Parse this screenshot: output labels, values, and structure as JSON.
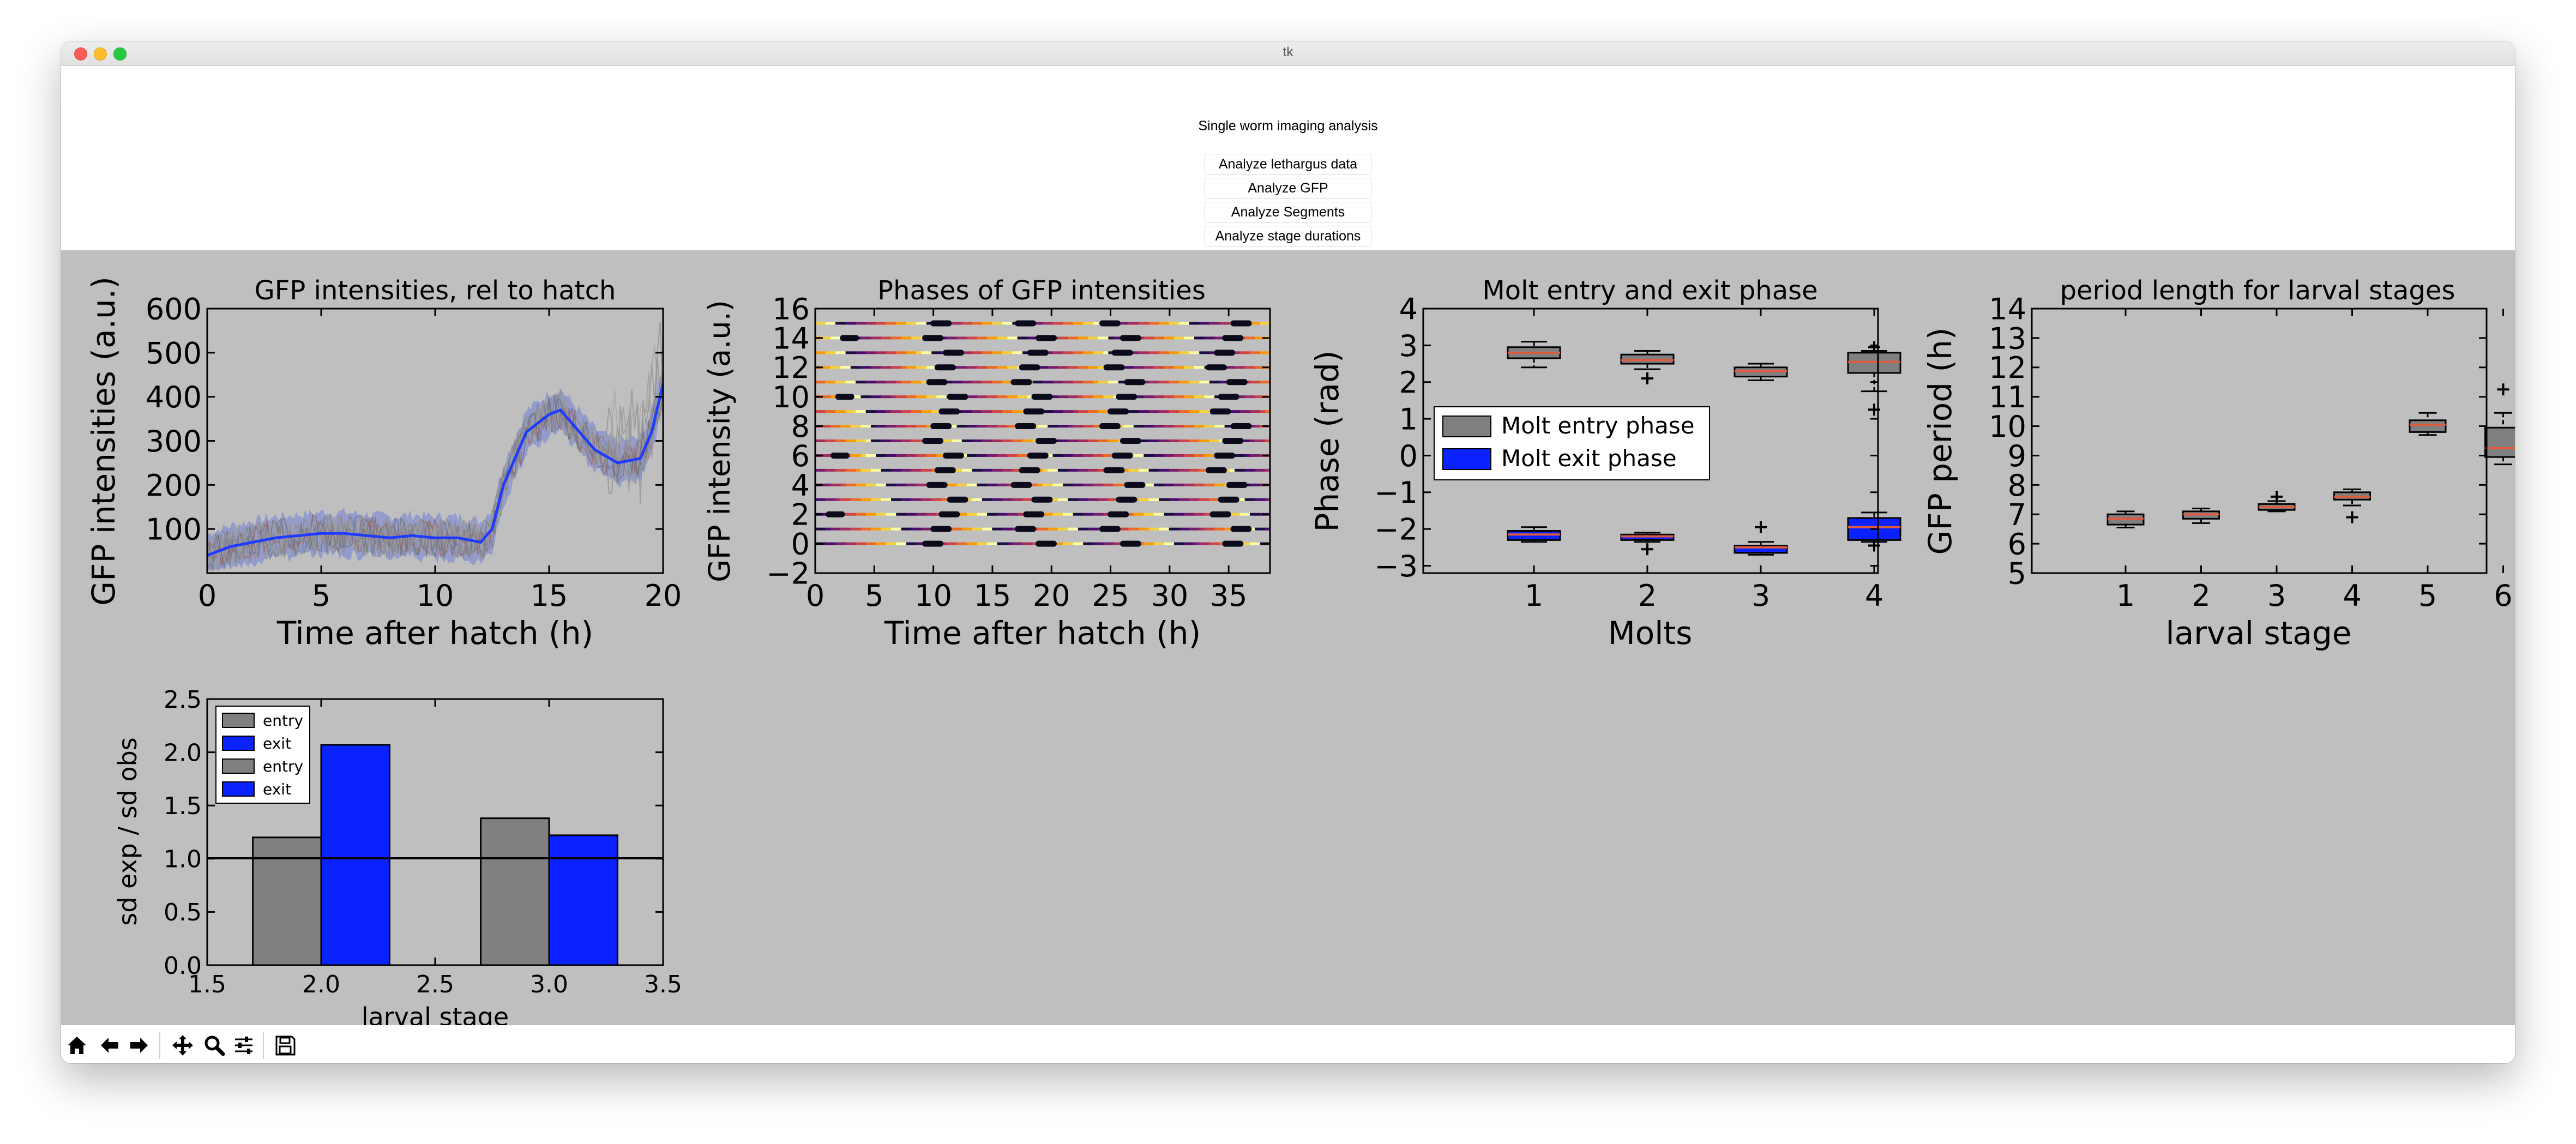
{
  "window": {
    "title": "tk"
  },
  "controls": {
    "title": "Single worm imaging analysis",
    "buttons": [
      "Analyze lethargus data",
      "Analyze GFP",
      "Analyze Segments",
      "Analyze stage durations"
    ]
  },
  "toolbar": {
    "icons": [
      "home-icon",
      "back-icon",
      "forward-icon",
      "pan-icon",
      "zoom-icon",
      "configure-subplots-icon",
      "save-icon"
    ]
  },
  "plots": {
    "p1": {
      "title": "GFP intensities, rel to hatch",
      "xlabel": "Time after hatch (h)",
      "ylabel": "GFP intensities (a.u.)",
      "xticks": [
        "0",
        "5",
        "10",
        "15",
        "20"
      ],
      "yticks": [
        "100",
        "200",
        "300",
        "400",
        "500",
        "600"
      ]
    },
    "p2": {
      "title": "Phases of GFP intensities",
      "xlabel": "Time after hatch (h)",
      "ylabel": "GFP intensity (a.u.)",
      "xticks": [
        "0",
        "5",
        "10",
        "15",
        "20",
        "25",
        "30",
        "35"
      ],
      "yticks": [
        "−2",
        "0",
        "2",
        "4",
        "6",
        "8",
        "10",
        "12",
        "14",
        "16"
      ]
    },
    "p3": {
      "title": "Molt entry and exit phase",
      "xlabel": "Molts",
      "ylabel": "Phase (rad)",
      "xticks": [
        "1",
        "2",
        "3",
        "4"
      ],
      "yticks": [
        "−3",
        "−2",
        "−1",
        "0",
        "1",
        "2",
        "3",
        "4"
      ],
      "legend": [
        "Molt entry phase",
        "Molt exit phase"
      ]
    },
    "p4": {
      "title": "period length for larval stages",
      "xlabel": "larval stage",
      "ylabel": "GFP period (h)",
      "xticks": [
        "1",
        "2",
        "3",
        "4",
        "5",
        "6"
      ],
      "yticks": [
        "5",
        "6",
        "7",
        "8",
        "9",
        "10",
        "11",
        "12",
        "13",
        "14"
      ]
    },
    "p5": {
      "xlabel": "larval stage",
      "ylabel": "sd exp / sd obs",
      "xticks": [
        "1.5",
        "2.0",
        "2.5",
        "3.0",
        "3.5"
      ],
      "yticks": [
        "0.0",
        "0.5",
        "1.0",
        "1.5",
        "2.0",
        "2.5"
      ],
      "legend": [
        "entry",
        "exit",
        "entry",
        "exit"
      ]
    }
  },
  "colors": {
    "entry": "#808080",
    "exit": "#0a22ff",
    "median": "#e05a40",
    "figure_bg": "#bfbfbf"
  },
  "chart_data": [
    {
      "type": "line",
      "title": "GFP intensities, rel to hatch",
      "xlabel": "Time after hatch (h)",
      "ylabel": "GFP intensities (a.u.)",
      "xlim": [
        0,
        20
      ],
      "ylim": [
        0,
        600
      ],
      "series": [
        {
          "x": [
            0,
            1,
            2,
            3,
            4,
            5,
            6,
            7,
            8,
            9,
            10,
            11,
            12,
            12.5,
            13,
            14,
            15,
            15.5,
            16,
            17,
            18,
            19,
            19.5,
            20
          ],
          "values": [
            40,
            60,
            70,
            80,
            85,
            90,
            90,
            85,
            80,
            85,
            80,
            80,
            70,
            100,
            200,
            320,
            360,
            370,
            340,
            280,
            250,
            260,
            320,
            430
          ]
        }
      ]
    },
    {
      "type": "scatter",
      "title": "Phases of GFP intensities",
      "xlabel": "Time after hatch (h)",
      "ylabel": "GFP intensity (a.u.)",
      "xlim": [
        0,
        38.5
      ],
      "ylim": [
        -2,
        16
      ],
      "rows": [
        0,
        1,
        2,
        3,
        4,
        5,
        6,
        7,
        8,
        9,
        10,
        11,
        12,
        13,
        14,
        15
      ],
      "molt_times_h": [
        11,
        18.5,
        26,
        35
      ]
    },
    {
      "type": "box",
      "title": "Molt entry and exit phase",
      "xlabel": "Molts",
      "ylabel": "Phase (rad)",
      "ylim": [
        -3.2,
        4
      ],
      "categories": [
        "1",
        "2",
        "3",
        "4"
      ],
      "series": [
        {
          "name": "Molt entry phase",
          "boxes": [
            {
              "q1": 2.65,
              "median": 2.8,
              "q3": 2.95,
              "lo": 2.4,
              "hi": 3.1,
              "outliers": []
            },
            {
              "q1": 2.5,
              "median": 2.6,
              "q3": 2.75,
              "lo": 2.35,
              "hi": 2.85,
              "outliers": [
                2.1
              ]
            },
            {
              "q1": 2.15,
              "median": 2.3,
              "q3": 2.4,
              "lo": 2.05,
              "hi": 2.5,
              "outliers": []
            },
            {
              "q1": 2.25,
              "median": 2.55,
              "q3": 2.8,
              "lo": 1.75,
              "hi": 2.85,
              "outliers": [
                2.95,
                1.25
              ]
            }
          ]
        },
        {
          "name": "Molt exit phase",
          "boxes": [
            {
              "q1": -2.3,
              "median": -2.15,
              "q3": -2.05,
              "lo": -2.35,
              "hi": -1.95,
              "outliers": []
            },
            {
              "q1": -2.3,
              "median": -2.2,
              "q3": -2.15,
              "lo": -2.35,
              "hi": -2.1,
              "outliers": [
                -2.55
              ]
            },
            {
              "q1": -2.65,
              "median": -2.5,
              "q3": -2.45,
              "lo": -2.7,
              "hi": -2.35,
              "outliers": [
                -1.95
              ]
            },
            {
              "q1": -2.3,
              "median": -1.95,
              "q3": -1.7,
              "lo": -2.35,
              "hi": -1.55,
              "outliers": [
                -2.45
              ]
            }
          ]
        }
      ],
      "legend_position": "center-left"
    },
    {
      "type": "box",
      "title": "period length for larval stages",
      "xlabel": "larval stage",
      "ylabel": "GFP period (h)",
      "ylim": [
        5,
        14
      ],
      "categories": [
        "1",
        "2",
        "3",
        "4",
        "5",
        "6"
      ],
      "boxes": [
        {
          "q1": 6.65,
          "median": 6.85,
          "q3": 7.0,
          "lo": 6.55,
          "hi": 7.1,
          "outliers": []
        },
        {
          "q1": 6.85,
          "median": 7.0,
          "q3": 7.1,
          "lo": 6.7,
          "hi": 7.2,
          "outliers": []
        },
        {
          "q1": 7.15,
          "median": 7.25,
          "q3": 7.35,
          "lo": 7.1,
          "hi": 7.45,
          "outliers": [
            7.6
          ]
        },
        {
          "q1": 7.5,
          "median": 7.6,
          "q3": 7.75,
          "lo": 7.3,
          "hi": 7.85,
          "outliers": [
            6.9
          ]
        },
        {
          "q1": 9.8,
          "median": 10.05,
          "q3": 10.2,
          "lo": 9.7,
          "hi": 10.45,
          "outliers": []
        },
        {
          "q1": 8.95,
          "median": 9.25,
          "q3": 9.95,
          "lo": 8.7,
          "hi": 10.45,
          "outliers": [
            11.25
          ]
        }
      ]
    },
    {
      "type": "bar",
      "xlabel": "larval stage",
      "ylabel": "sd exp / sd obs",
      "xlim": [
        1.5,
        3.5
      ],
      "ylim": [
        0,
        2.5
      ],
      "categories": [
        2.0,
        3.0
      ],
      "series": [
        {
          "name": "entry",
          "values": [
            1.2,
            1.38
          ]
        },
        {
          "name": "exit",
          "values": [
            2.07,
            1.22
          ]
        }
      ],
      "reference_line": 1.0,
      "legend_position": "top-left"
    }
  ]
}
